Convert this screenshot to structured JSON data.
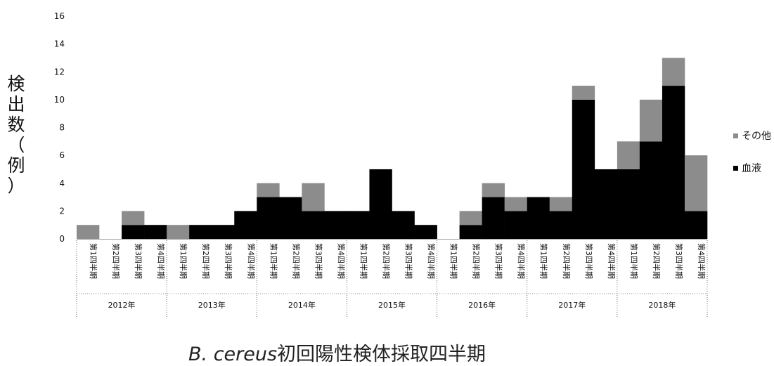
{
  "chart_data": {
    "type": "bar",
    "stacked": true,
    "ylabel_chars": [
      "検",
      "出",
      "数",
      "（",
      "例",
      "）"
    ],
    "xlabel_italic": "B. cereus",
    "xlabel_rest": "初回陽性検体採取四半期",
    "ylim": [
      0,
      16
    ],
    "yticks": [
      0,
      2,
      4,
      6,
      8,
      10,
      12,
      14,
      16
    ],
    "years": [
      "2012年",
      "2013年",
      "2014年",
      "2015年",
      "2016年",
      "2017年",
      "2018年"
    ],
    "quarters": [
      "第1四半期",
      "第2四半期",
      "第3四半期",
      "第4四半期"
    ],
    "series": [
      {
        "name": "血液",
        "color": "#000000",
        "values": [
          0,
          0,
          1,
          1,
          0,
          1,
          1,
          2,
          3,
          3,
          2,
          2,
          2,
          5,
          2,
          1,
          0,
          1,
          3,
          2,
          3,
          2,
          10,
          5,
          5,
          7,
          11,
          2
        ]
      },
      {
        "name": "その他",
        "color": "#8c8c8c",
        "values": [
          1,
          0,
          1,
          0,
          1,
          0,
          0,
          0,
          1,
          0,
          2,
          0,
          0,
          0,
          0,
          0,
          0,
          1,
          1,
          1,
          0,
          1,
          1,
          0,
          2,
          3,
          2,
          4
        ]
      }
    ],
    "legend_position": "right"
  },
  "legend": {
    "other": "その他",
    "blood": "血液"
  }
}
